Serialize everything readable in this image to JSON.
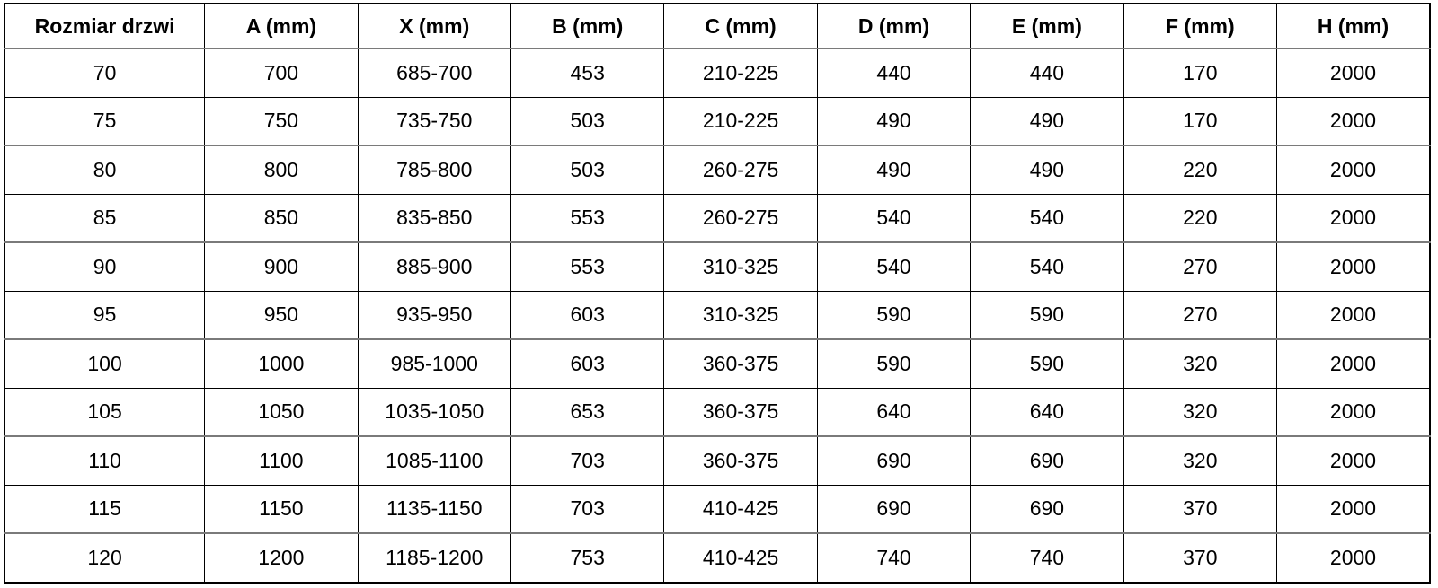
{
  "table": {
    "title": "door-dimensions-spec",
    "columns": [
      "Rozmiar drzwi",
      "A (mm)",
      "X (mm)",
      "B (mm)",
      "C (mm)",
      "D (mm)",
      "E (mm)",
      "F (mm)",
      "H (mm)"
    ],
    "rows": [
      [
        "70",
        "700",
        "685-700",
        "453",
        "210-225",
        "440",
        "440",
        "170",
        "2000"
      ],
      [
        "75",
        "750",
        "735-750",
        "503",
        "210-225",
        "490",
        "490",
        "170",
        "2000"
      ],
      [
        "80",
        "800",
        "785-800",
        "503",
        "260-275",
        "490",
        "490",
        "220",
        "2000"
      ],
      [
        "85",
        "850",
        "835-850",
        "553",
        "260-275",
        "540",
        "540",
        "220",
        "2000"
      ],
      [
        "90",
        "900",
        "885-900",
        "553",
        "310-325",
        "540",
        "540",
        "270",
        "2000"
      ],
      [
        "95",
        "950",
        "935-950",
        "603",
        "310-325",
        "590",
        "590",
        "270",
        "2000"
      ],
      [
        "100",
        "1000",
        "985-1000",
        "603",
        "360-375",
        "590",
        "590",
        "320",
        "2000"
      ],
      [
        "105",
        "1050",
        "1035-1050",
        "653",
        "360-375",
        "640",
        "640",
        "320",
        "2000"
      ],
      [
        "110",
        "1100",
        "1085-1100",
        "703",
        "360-375",
        "690",
        "690",
        "320",
        "2000"
      ],
      [
        "115",
        "1150",
        "1135-1150",
        "703",
        "410-425",
        "690",
        "690",
        "370",
        "2000"
      ],
      [
        "120",
        "1200",
        "1185-1200",
        "753",
        "410-425",
        "740",
        "740",
        "370",
        "2000"
      ]
    ]
  },
  "colors": {
    "text": "#000000",
    "grid_line": "#000000",
    "thick_rule": "#7a7a7a",
    "background": "#ffffff"
  }
}
